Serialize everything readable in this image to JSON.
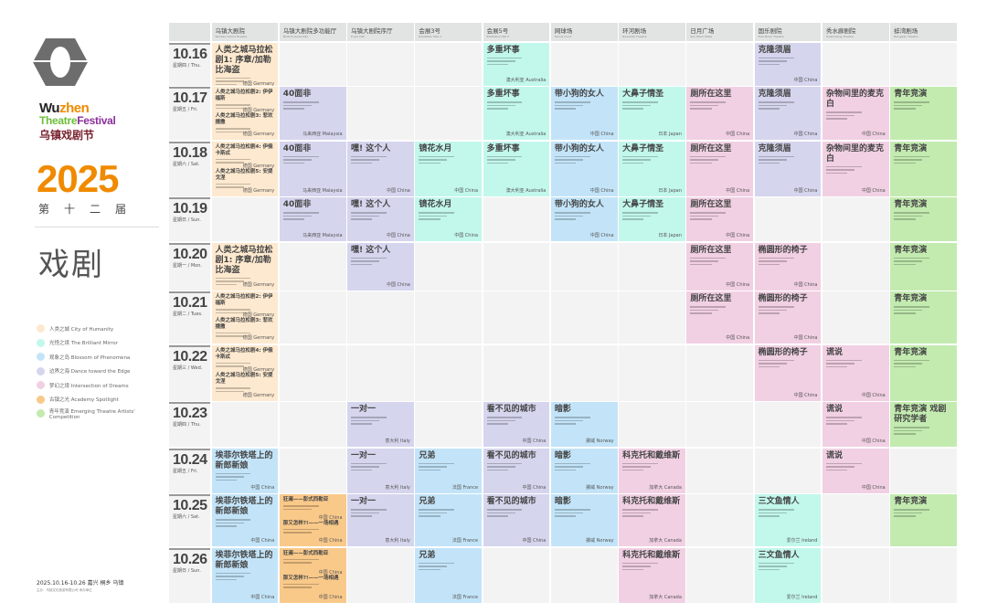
{
  "brand": {
    "wu": "Wu",
    "zhen": "zhen",
    "theatre": "Theatre",
    "festival": "Festival",
    "cn": "乌镇戏剧节",
    "year": "2025",
    "edition": "第十二届",
    "calligraphy": "戏剧"
  },
  "legend": [
    {
      "label": "人类之城  City of Humanity",
      "color": "#fde9cf"
    },
    {
      "label": "光怪之境  The Brilliant Mirror",
      "color": "#c2f7ec"
    },
    {
      "label": "观象之岛  Blossom of Phenomena",
      "color": "#c3e4f8"
    },
    {
      "label": "边界之海  Dance toward the Edge",
      "color": "#d5d5ee"
    },
    {
      "label": "梦幻之境  Intersection of Dreams",
      "color": "#f1d0e3"
    },
    {
      "label": "古镇之光  Academy Spotlight",
      "color": "#f9c98a"
    },
    {
      "label": "青年竞演  Emerging Theatre Artists' Competition",
      "color": "#c3ebb0"
    }
  ],
  "footer": {
    "line1": "2025.10.16-10.26  嘉兴 桐乡 乌镇",
    "line2": "主办：乌镇文化旅游有限公司 承办单位"
  },
  "venues": [
    {
      "cn": "乌镇大剧院",
      "en": "Wuzhen Grand Theatre"
    },
    {
      "cn": "乌镇大剧院多功能厅",
      "en": "Multi-Purpose Hall"
    },
    {
      "cn": "乌镇大剧院序厅",
      "en": "Foyer Hall"
    },
    {
      "cn": "会展3号",
      "en": "Exhibition Hall 3"
    },
    {
      "cn": "会展5号",
      "en": "Exhibition Hall 5"
    },
    {
      "cn": "网球场",
      "en": "Tennis Court"
    },
    {
      "cn": "环河剧场",
      "en": "Riverside Theatre"
    },
    {
      "cn": "日月广场",
      "en": "Sun Moon Plaza"
    },
    {
      "cn": "国乐剧院",
      "en": "Folk Music Theatre"
    },
    {
      "cn": "秀水廊剧院",
      "en": "Xiushuilang Theatre"
    },
    {
      "cn": "蚌湾剧场",
      "en": "Bangwan Theatre"
    }
  ],
  "days": [
    {
      "date": "10.16",
      "week": "星期四 / Thu."
    },
    {
      "date": "10.17",
      "week": "星期五 / Fri."
    },
    {
      "date": "10.18",
      "week": "星期六 / Sat."
    },
    {
      "date": "10.19",
      "week": "星期日 / Sun."
    },
    {
      "date": "10.20",
      "week": "星期一 / Mon."
    },
    {
      "date": "10.21",
      "week": "星期二 / Tues."
    },
    {
      "date": "10.22",
      "week": "星期三 / Wed."
    },
    {
      "date": "10.23",
      "week": "星期四 / Thu."
    },
    {
      "date": "10.24",
      "week": "星期五 / Fri."
    },
    {
      "date": "10.25",
      "week": "星期六 / Sat."
    },
    {
      "date": "10.26",
      "week": "星期日 / Sun."
    }
  ],
  "events": [
    {
      "venue": 0,
      "day": 0,
      "span": 1,
      "cat": 0,
      "parts": [
        {
          "title": "人类之城马拉松剧1: 序章/加勒比海盗",
          "country": "德国 Germany"
        }
      ]
    },
    {
      "venue": 0,
      "day": 1,
      "span": 1,
      "cat": 0,
      "parts": [
        {
          "title": "人类之城马拉松剧2: 伊伊福斯",
          "country": "德国 Germany"
        },
        {
          "title": "人类之城马拉松剧3: 悲欢播撒",
          "country": "德国 Germany"
        }
      ]
    },
    {
      "venue": 0,
      "day": 2,
      "span": 1,
      "cat": 0,
      "parts": [
        {
          "title": "人类之城马拉松剧4: 伊俄卡斯忒",
          "country": "德国 Germany"
        },
        {
          "title": "人类之城马拉松剧5: 安提戈涅",
          "country": "德国 Germany"
        }
      ]
    },
    {
      "venue": 0,
      "day": 4,
      "span": 1,
      "cat": 0,
      "parts": [
        {
          "title": "人类之城马拉松剧1: 序章/加勒比海盗",
          "country": "德国 Germany"
        }
      ]
    },
    {
      "venue": 0,
      "day": 5,
      "span": 1,
      "cat": 0,
      "parts": [
        {
          "title": "人类之城马拉松剧2: 伊伊福斯",
          "country": "德国 Germany"
        },
        {
          "title": "人类之城马拉松剧3: 悲欢播撒",
          "country": "德国 Germany"
        }
      ]
    },
    {
      "venue": 0,
      "day": 6,
      "span": 1,
      "cat": 0,
      "parts": [
        {
          "title": "人类之城马拉松剧4: 伊俄卡斯忒",
          "country": "德国 Germany"
        },
        {
          "title": "人类之城马拉松剧5: 安提戈涅",
          "country": "德国 Germany"
        }
      ]
    },
    {
      "venue": 0,
      "day": 8,
      "span": 1,
      "cat": 2,
      "parts": [
        {
          "title": "埃菲尔铁塔上的新郎新娘",
          "country": "中国 China"
        }
      ]
    },
    {
      "venue": 0,
      "day": 9,
      "span": 1,
      "cat": 2,
      "parts": [
        {
          "title": "埃菲尔铁塔上的新郎新娘",
          "country": "中国 China"
        }
      ]
    },
    {
      "venue": 0,
      "day": 10,
      "span": 1,
      "cat": 2,
      "parts": [
        {
          "title": "埃菲尔铁塔上的新郎新娘",
          "country": "中国 China"
        }
      ]
    },
    {
      "venue": 1,
      "day": 1,
      "span": 1,
      "cat": 3,
      "parts": [
        {
          "title": "40面非",
          "country": "马来西亚 Malaysia"
        }
      ]
    },
    {
      "venue": 1,
      "day": 2,
      "span": 1,
      "cat": 3,
      "parts": [
        {
          "title": "40面非",
          "country": "马来西亚 Malaysia"
        }
      ]
    },
    {
      "venue": 1,
      "day": 3,
      "span": 1,
      "cat": 3,
      "parts": [
        {
          "title": "40面非",
          "country": "马来西亚 Malaysia"
        }
      ]
    },
    {
      "venue": 1,
      "day": 9,
      "span": 1,
      "cat": 5,
      "parts": [
        {
          "title": "狂澜——彭式西勒亚",
          "country": "中国 China"
        },
        {
          "title": "那又怎样?!——一场相遇",
          "country": "中国 China"
        }
      ]
    },
    {
      "venue": 1,
      "day": 10,
      "span": 1,
      "cat": 5,
      "parts": [
        {
          "title": "狂澜——彭式西勒亚",
          "country": "中国 China"
        },
        {
          "title": "那又怎样?!——一场相遇",
          "country": "中国 China"
        }
      ]
    },
    {
      "venue": 2,
      "day": 2,
      "span": 1,
      "cat": 3,
      "parts": [
        {
          "title": "嘿! 这个人",
          "country": "中国 China"
        }
      ]
    },
    {
      "venue": 2,
      "day": 3,
      "span": 1,
      "cat": 3,
      "parts": [
        {
          "title": "嘿! 这个人",
          "country": "中国 China"
        }
      ]
    },
    {
      "venue": 2,
      "day": 4,
      "span": 1,
      "cat": 3,
      "parts": [
        {
          "title": "嘿! 这个人",
          "country": "中国 China"
        }
      ]
    },
    {
      "venue": 2,
      "day": 7,
      "span": 1,
      "cat": 3,
      "parts": [
        {
          "title": "一对一",
          "country": "意大利 Italy"
        }
      ]
    },
    {
      "venue": 2,
      "day": 8,
      "span": 1,
      "cat": 3,
      "parts": [
        {
          "title": "一对一",
          "country": "意大利 Italy"
        }
      ]
    },
    {
      "venue": 2,
      "day": 9,
      "span": 1,
      "cat": 3,
      "parts": [
        {
          "title": "一对一",
          "country": "意大利 Italy"
        }
      ]
    },
    {
      "venue": 3,
      "day": 2,
      "span": 1,
      "cat": 1,
      "parts": [
        {
          "title": "镜花水月",
          "country": "中国 China"
        }
      ]
    },
    {
      "venue": 3,
      "day": 3,
      "span": 1,
      "cat": 1,
      "parts": [
        {
          "title": "镜花水月",
          "country": "中国 China"
        }
      ]
    },
    {
      "venue": 3,
      "day": 8,
      "span": 1,
      "cat": 2,
      "parts": [
        {
          "title": "兄弟",
          "country": "法国 France"
        }
      ]
    },
    {
      "venue": 3,
      "day": 9,
      "span": 1,
      "cat": 2,
      "parts": [
        {
          "title": "兄弟",
          "country": "法国 France"
        }
      ]
    },
    {
      "venue": 3,
      "day": 10,
      "span": 1,
      "cat": 2,
      "parts": [
        {
          "title": "兄弟",
          "country": "法国 France"
        }
      ]
    },
    {
      "venue": 4,
      "day": 0,
      "span": 1,
      "cat": 1,
      "parts": [
        {
          "title": "多重坏事",
          "country": "澳大利亚 Australia"
        }
      ]
    },
    {
      "venue": 4,
      "day": 1,
      "span": 1,
      "cat": 1,
      "parts": [
        {
          "title": "多重坏事",
          "country": "澳大利亚 Australia"
        }
      ]
    },
    {
      "venue": 4,
      "day": 2,
      "span": 1,
      "cat": 1,
      "parts": [
        {
          "title": "多重坏事",
          "country": "澳大利亚 Australia"
        }
      ]
    },
    {
      "venue": 4,
      "day": 7,
      "span": 1,
      "cat": 3,
      "parts": [
        {
          "title": "看不见的城市",
          "country": "中国 China"
        }
      ]
    },
    {
      "venue": 4,
      "day": 8,
      "span": 1,
      "cat": 3,
      "parts": [
        {
          "title": "看不见的城市",
          "country": "中国 China"
        }
      ]
    },
    {
      "venue": 4,
      "day": 9,
      "span": 1,
      "cat": 3,
      "parts": [
        {
          "title": "看不见的城市",
          "country": "中国 China"
        }
      ]
    },
    {
      "venue": 5,
      "day": 1,
      "span": 1,
      "cat": 2,
      "parts": [
        {
          "title": "带小狗的女人",
          "country": "中国 China"
        }
      ]
    },
    {
      "venue": 5,
      "day": 2,
      "span": 1,
      "cat": 2,
      "parts": [
        {
          "title": "带小狗的女人",
          "country": "中国 China"
        }
      ]
    },
    {
      "venue": 5,
      "day": 3,
      "span": 1,
      "cat": 2,
      "parts": [
        {
          "title": "带小狗的女人",
          "country": "中国 China"
        }
      ]
    },
    {
      "venue": 5,
      "day": 7,
      "span": 1,
      "cat": 2,
      "parts": [
        {
          "title": "暗影",
          "country": "挪威 Norway"
        }
      ]
    },
    {
      "venue": 5,
      "day": 8,
      "span": 1,
      "cat": 2,
      "parts": [
        {
          "title": "暗影",
          "country": "挪威 Norway"
        }
      ]
    },
    {
      "venue": 5,
      "day": 9,
      "span": 1,
      "cat": 2,
      "parts": [
        {
          "title": "暗影",
          "country": "挪威 Norway"
        }
      ]
    },
    {
      "venue": 6,
      "day": 1,
      "span": 1,
      "cat": 1,
      "parts": [
        {
          "title": "大鼻子情圣",
          "country": "日本 Japan"
        }
      ]
    },
    {
      "venue": 6,
      "day": 2,
      "span": 1,
      "cat": 1,
      "parts": [
        {
          "title": "大鼻子情圣",
          "country": "日本 Japan"
        }
      ]
    },
    {
      "venue": 6,
      "day": 3,
      "span": 1,
      "cat": 1,
      "parts": [
        {
          "title": "大鼻子情圣",
          "country": "日本 Japan"
        }
      ]
    },
    {
      "venue": 6,
      "day": 8,
      "span": 1,
      "cat": 4,
      "parts": [
        {
          "title": "科克托和戴维斯",
          "country": "加拿大 Canada"
        }
      ]
    },
    {
      "venue": 6,
      "day": 9,
      "span": 1,
      "cat": 4,
      "parts": [
        {
          "title": "科克托和戴维斯",
          "country": "加拿大 Canada"
        }
      ]
    },
    {
      "venue": 6,
      "day": 10,
      "span": 1,
      "cat": 4,
      "parts": [
        {
          "title": "科克托和戴维斯",
          "country": "加拿大 Canada"
        }
      ]
    },
    {
      "venue": 7,
      "day": 1,
      "span": 1,
      "cat": 4,
      "parts": [
        {
          "title": "厕所在这里",
          "country": "中国 China"
        }
      ]
    },
    {
      "venue": 7,
      "day": 2,
      "span": 1,
      "cat": 4,
      "parts": [
        {
          "title": "厕所在这里",
          "country": "中国 China"
        }
      ]
    },
    {
      "venue": 7,
      "day": 3,
      "span": 1,
      "cat": 4,
      "parts": [
        {
          "title": "厕所在这里",
          "country": "中国 China"
        }
      ]
    },
    {
      "venue": 7,
      "day": 4,
      "span": 1,
      "cat": 4,
      "parts": [
        {
          "title": "厕所在这里",
          "country": "中国 China"
        }
      ]
    },
    {
      "venue": 7,
      "day": 5,
      "span": 1,
      "cat": 4,
      "parts": [
        {
          "title": "厕所在这里",
          "country": "中国 China"
        }
      ]
    },
    {
      "venue": 8,
      "day": 0,
      "span": 1,
      "cat": 3,
      "parts": [
        {
          "title": "克隆须眉",
          "country": "中国 China"
        }
      ]
    },
    {
      "venue": 8,
      "day": 1,
      "span": 1,
      "cat": 3,
      "parts": [
        {
          "title": "克隆须眉",
          "country": "中国 China"
        }
      ]
    },
    {
      "venue": 8,
      "day": 2,
      "span": 1,
      "cat": 3,
      "parts": [
        {
          "title": "克隆须眉",
          "country": "中国 China"
        }
      ]
    },
    {
      "venue": 8,
      "day": 4,
      "span": 1,
      "cat": 4,
      "parts": [
        {
          "title": "椭圆形的椅子",
          "country": "中国 China"
        }
      ]
    },
    {
      "venue": 8,
      "day": 5,
      "span": 1,
      "cat": 4,
      "parts": [
        {
          "title": "椭圆形的椅子",
          "country": "中国 China"
        }
      ]
    },
    {
      "venue": 8,
      "day": 6,
      "span": 1,
      "cat": 4,
      "parts": [
        {
          "title": "椭圆形的椅子",
          "country": "中国 China"
        }
      ]
    },
    {
      "venue": 8,
      "day": 9,
      "span": 1,
      "cat": 1,
      "parts": [
        {
          "title": "三文鱼情人",
          "country": "爱尔兰 Ireland"
        }
      ]
    },
    {
      "venue": 8,
      "day": 10,
      "span": 1,
      "cat": 1,
      "parts": [
        {
          "title": "三文鱼情人",
          "country": "爱尔兰 Ireland"
        }
      ]
    },
    {
      "venue": 9,
      "day": 1,
      "span": 1,
      "cat": 4,
      "parts": [
        {
          "title": "杂物间里的麦克白",
          "country": "中国 China"
        }
      ]
    },
    {
      "venue": 9,
      "day": 2,
      "span": 1,
      "cat": 4,
      "parts": [
        {
          "title": "杂物间里的麦克白",
          "country": "中国 China"
        }
      ]
    },
    {
      "venue": 9,
      "day": 6,
      "span": 1,
      "cat": 4,
      "parts": [
        {
          "title": "谎说",
          "country": "中国 China"
        }
      ]
    },
    {
      "venue": 9,
      "day": 7,
      "span": 1,
      "cat": 4,
      "parts": [
        {
          "title": "谎说",
          "country": "中国 China"
        }
      ]
    },
    {
      "venue": 9,
      "day": 8,
      "span": 1,
      "cat": 4,
      "parts": [
        {
          "title": "谎说",
          "country": "中国 China"
        }
      ]
    },
    {
      "venue": 10,
      "day": 1,
      "span": 1,
      "cat": 6,
      "parts": [
        {
          "title": "青年竞演",
          "country": ""
        }
      ]
    },
    {
      "venue": 10,
      "day": 2,
      "span": 1,
      "cat": 6,
      "parts": [
        {
          "title": "青年竞演",
          "country": ""
        }
      ]
    },
    {
      "venue": 10,
      "day": 3,
      "span": 1,
      "cat": 6,
      "parts": [
        {
          "title": "青年竞演",
          "country": ""
        }
      ]
    },
    {
      "venue": 10,
      "day": 4,
      "span": 1,
      "cat": 6,
      "parts": [
        {
          "title": "青年竞演",
          "country": ""
        }
      ]
    },
    {
      "venue": 10,
      "day": 5,
      "span": 1,
      "cat": 6,
      "parts": [
        {
          "title": "青年竞演",
          "country": ""
        }
      ]
    },
    {
      "venue": 10,
      "day": 6,
      "span": 1,
      "cat": 6,
      "parts": [
        {
          "title": "青年竞演",
          "country": ""
        }
      ]
    },
    {
      "venue": 10,
      "day": 7,
      "span": 1,
      "cat": 6,
      "parts": [
        {
          "title": "青年竞演 戏剧研究学者",
          "country": ""
        }
      ]
    },
    {
      "venue": 10,
      "day": 9,
      "span": 1,
      "cat": 6,
      "parts": [
        {
          "title": "青年竞演",
          "country": ""
        }
      ]
    }
  ]
}
